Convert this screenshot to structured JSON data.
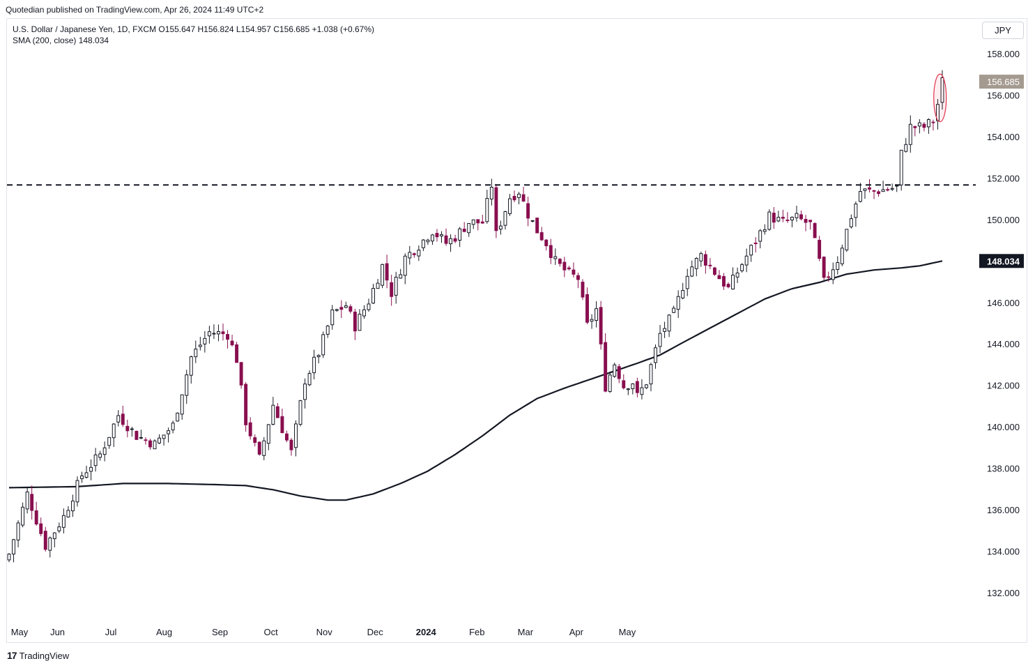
{
  "header": {
    "published": "Quotedian published on TradingView.com, Apr 26, 2024 11:49 UTC+2"
  },
  "legend": {
    "line1": "U.S. Dollar / Japanese Yen, 1D, FXCM  O155.647  H156.824  L154.957  C156.685  +1.038 (+0.67%)",
    "line2": "SMA (200, close)  148.034"
  },
  "currency": "JPY",
  "footer": {
    "brand": "TradingView",
    "logo_text": "17"
  },
  "colors": {
    "up": "#131722",
    "down": "#880e4f",
    "sma": "#131722",
    "price_badge": "#a49a90",
    "sma_badge": "#131722",
    "highlight": "#e0314b"
  },
  "chart_data": {
    "type": "candlestick",
    "symbol": "U.S. Dollar / Japanese Yen",
    "interval": "1D",
    "ylim": [
      131.0,
      159.5
    ],
    "yticks": [
      "158.000",
      "156.000",
      "154.000",
      "152.000",
      "150.000",
      "148.000",
      "146.000",
      "144.000",
      "142.000",
      "140.000",
      "138.000",
      "136.000",
      "134.000",
      "132.000"
    ],
    "ytick_values": [
      158,
      156,
      154,
      152,
      150,
      148,
      146,
      144,
      142,
      140,
      138,
      136,
      134,
      132
    ],
    "xlabels": [
      "May",
      "Jun",
      "Jul",
      "Aug",
      "Sep",
      "Oct",
      "Nov",
      "Dec",
      "2024",
      "Feb",
      "Mar",
      "Apr",
      "May"
    ],
    "xlabel_bold": "2024",
    "last_price": "156.685",
    "last_price_value": 156.685,
    "sma_label": "148.034",
    "sma_value": 148.034,
    "resistance_level": 151.7,
    "close_anchors": [
      [
        0,
        133.9
      ],
      [
        4,
        136.8
      ],
      [
        8,
        134.3
      ],
      [
        12,
        135.7
      ],
      [
        16,
        137.7
      ],
      [
        20,
        138.7
      ],
      [
        24,
        140.6
      ],
      [
        28,
        139.6
      ],
      [
        32,
        139.2
      ],
      [
        36,
        140.1
      ],
      [
        40,
        143.4
      ],
      [
        44,
        144.6
      ],
      [
        48,
        144.5
      ],
      [
        50,
        143.3
      ],
      [
        52,
        140.3
      ],
      [
        55,
        138.5
      ],
      [
        58,
        141.1
      ],
      [
        62,
        138.8
      ],
      [
        65,
        142.3
      ],
      [
        68,
        143.6
      ],
      [
        71,
        145.5
      ],
      [
        74,
        145.9
      ],
      [
        76,
        144.9
      ],
      [
        79,
        146.1
      ],
      [
        82,
        147.8
      ],
      [
        84,
        146.5
      ],
      [
        87,
        148.2
      ],
      [
        90,
        148.8
      ],
      [
        93,
        149.5
      ],
      [
        96,
        148.9
      ],
      [
        98,
        149.2
      ],
      [
        101,
        149.9
      ],
      [
        104,
        149.9
      ],
      [
        106,
        151.7
      ],
      [
        107,
        149.3
      ],
      [
        110,
        151.1
      ],
      [
        112,
        151.4
      ],
      [
        114,
        150.3
      ],
      [
        116,
        149.5
      ],
      [
        118,
        148.9
      ],
      [
        120,
        148.0
      ],
      [
        123,
        147.4
      ],
      [
        125,
        147.2
      ],
      [
        127,
        144.9
      ],
      [
        129,
        145.7
      ],
      [
        131,
        142.0
      ],
      [
        133,
        143.1
      ],
      [
        135,
        142.0
      ],
      [
        137,
        142.2
      ],
      [
        138,
        141.5
      ],
      [
        140,
        142.2
      ],
      [
        143,
        144.5
      ],
      [
        146,
        145.5
      ],
      [
        149,
        147.5
      ],
      [
        152,
        148.3
      ],
      [
        155,
        147.5
      ],
      [
        158,
        146.7
      ],
      [
        161,
        147.9
      ],
      [
        164,
        149.0
      ],
      [
        167,
        150.2
      ],
      [
        170,
        149.9
      ],
      [
        173,
        150.1
      ],
      [
        176,
        149.8
      ],
      [
        178,
        148.0
      ],
      [
        179,
        147.0
      ],
      [
        182,
        148.1
      ],
      [
        185,
        150.2
      ],
      [
        187,
        151.4
      ],
      [
        190,
        151.4
      ],
      [
        193,
        151.5
      ],
      [
        195,
        151.6
      ],
      [
        196,
        153.2
      ],
      [
        198,
        154.5
      ],
      [
        201,
        154.5
      ],
      [
        203,
        154.8
      ],
      [
        204,
        155.6
      ],
      [
        205,
        156.685
      ]
    ],
    "sma_anchors": [
      [
        0,
        137.1
      ],
      [
        15,
        137.15
      ],
      [
        25,
        137.3
      ],
      [
        35,
        137.3
      ],
      [
        45,
        137.25
      ],
      [
        52,
        137.2
      ],
      [
        58,
        137.0
      ],
      [
        64,
        136.7
      ],
      [
        70,
        136.5
      ],
      [
        74,
        136.5
      ],
      [
        80,
        136.8
      ],
      [
        86,
        137.3
      ],
      [
        92,
        137.9
      ],
      [
        98,
        138.7
      ],
      [
        104,
        139.6
      ],
      [
        110,
        140.6
      ],
      [
        116,
        141.4
      ],
      [
        122,
        141.9
      ],
      [
        126,
        142.2
      ],
      [
        130,
        142.5
      ],
      [
        134,
        142.8
      ],
      [
        138,
        143.1
      ],
      [
        143,
        143.5
      ],
      [
        148,
        144.1
      ],
      [
        154,
        144.8
      ],
      [
        160,
        145.5
      ],
      [
        166,
        146.2
      ],
      [
        172,
        146.7
      ],
      [
        178,
        147.0
      ],
      [
        184,
        147.4
      ],
      [
        190,
        147.6
      ],
      [
        196,
        147.7
      ],
      [
        200,
        147.8
      ],
      [
        205,
        148.034
      ]
    ],
    "num_bars": 206,
    "highlight_last_bars": 2
  }
}
